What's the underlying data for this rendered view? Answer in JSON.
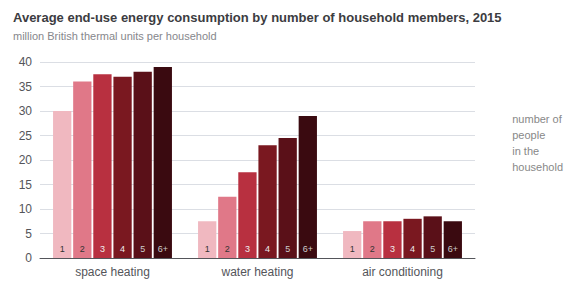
{
  "chart_data": {
    "type": "bar",
    "title": "Average end-use energy consumption by number of household members, 2015",
    "subtitle": "million British thermal units per household",
    "annotation": "number of\npeople\nin the\nhousehold",
    "categories": [
      "space heating",
      "water heating",
      "air conditioning"
    ],
    "series": [
      {
        "name": "1",
        "color": "#f0b8c0",
        "values": [
          30,
          7.5,
          5.5
        ]
      },
      {
        "name": "2",
        "color": "#e07888",
        "values": [
          36,
          12.5,
          7.5
        ]
      },
      {
        "name": "3",
        "color": "#b83040",
        "values": [
          37.5,
          17.5,
          7.5
        ]
      },
      {
        "name": "4",
        "color": "#7a1820",
        "values": [
          37,
          23,
          8
        ]
      },
      {
        "name": "5",
        "color": "#5a1018",
        "values": [
          38,
          24.5,
          8.5
        ]
      },
      {
        "name": "6+",
        "color": "#3a0a10",
        "values": [
          39,
          29,
          7.5
        ]
      }
    ],
    "ylim": [
      0,
      40
    ],
    "yticks": [
      0,
      5,
      10,
      15,
      20,
      25,
      30,
      35,
      40
    ],
    "grid": true
  }
}
